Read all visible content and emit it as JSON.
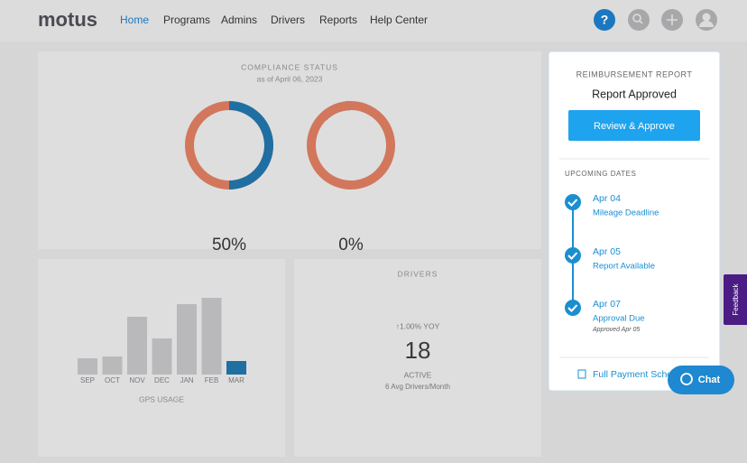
{
  "nav": {
    "logo": "motus",
    "links": [
      "Home",
      "Programs",
      "Admins",
      "Drivers",
      "Reports",
      "Help Center"
    ],
    "help_icon": "?"
  },
  "compliance": {
    "title": "COMPLIANCE STATUS",
    "subtitle": "as of April 06, 2023",
    "donuts": [
      {
        "value": 50,
        "label": "50%"
      },
      {
        "value": 0,
        "label": "0%"
      }
    ]
  },
  "gps_usage": {
    "type": "bar",
    "label": "GPS USAGE",
    "categories": [
      "SEP",
      "OCT",
      "NOV",
      "DEC",
      "JAN",
      "FEB",
      "MAR"
    ],
    "values": [
      18,
      20,
      64,
      40,
      78,
      85,
      15
    ],
    "colors": [
      "#b9b9bc",
      "#b9b9bc",
      "#b9b9bc",
      "#b9b9bc",
      "#b9b9bc",
      "#b9b9bc",
      "#1f6fa3"
    ]
  },
  "drivers": {
    "title": "DRIVERS",
    "change": "↑1.00% YOY",
    "count": 18,
    "status": "ACTIVE",
    "note": "6 Avg Drivers/Month"
  },
  "reimbursement": {
    "title": "REIMBURSEMENT REPORT",
    "status": "Report Approved",
    "button": "Review & Approve",
    "upcoming_title": "UPCOMING DATES",
    "dates": [
      {
        "date": "Apr 04",
        "label": "Mileage Deadline"
      },
      {
        "date": "Apr 05",
        "label": "Report Available"
      },
      {
        "date": "Apr 07",
        "label": "Approval Due",
        "note": "Approved Apr 05"
      }
    ],
    "footer_link": "Full Payment Schedule"
  },
  "feedback": "Feedback",
  "chat": "Chat"
}
